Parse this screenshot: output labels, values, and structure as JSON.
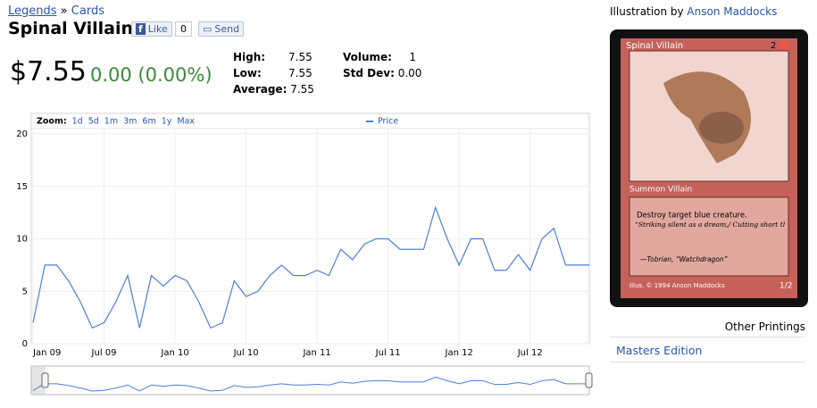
{
  "header": {
    "breadcrumb": [
      "Legends",
      "»",
      "Cards"
    ],
    "title": "Spinal Villain",
    "like": "Like",
    "like_count": "0",
    "send": "Send"
  },
  "price": {
    "value": "$7.55",
    "change": "0.00 (0.00%)"
  },
  "stats": [
    {
      "label": "High:",
      "value": "7.55"
    },
    {
      "label": "Low:",
      "value": "7.55"
    },
    {
      "label": "Average:",
      "value": "7.55"
    },
    {
      "label": "Volume:",
      "value": "1"
    },
    {
      "label": "Std Dev:",
      "value": "0.00"
    }
  ],
  "chart_data": {
    "type": "line",
    "zoom_label": "Zoom:",
    "zoom_options": [
      "1d",
      "5d",
      "1m",
      "3m",
      "6m",
      "1y",
      "Max"
    ],
    "x": [
      "2009-01",
      "2009-02",
      "2009-03",
      "2009-04",
      "2009-05",
      "2009-06",
      "2009-07",
      "2009-08",
      "2009-09",
      "2009-10",
      "2009-11",
      "2009-12",
      "2010-01",
      "2010-02",
      "2010-03",
      "2010-04",
      "2010-05",
      "2010-06",
      "2010-07",
      "2010-08",
      "2010-09",
      "2010-10",
      "2010-11",
      "2010-12",
      "2011-01",
      "2011-02",
      "2011-03",
      "2011-04",
      "2011-05",
      "2011-06",
      "2011-07",
      "2011-08",
      "2011-09",
      "2011-10",
      "2011-11",
      "2011-12",
      "2012-01",
      "2012-02",
      "2012-03",
      "2012-04",
      "2012-05",
      "2012-06",
      "2012-07",
      "2012-08",
      "2012-09",
      "2012-10",
      "2012-11",
      "2012-12"
    ],
    "series": [
      {
        "name": "Price",
        "color": "#4d7fd6",
        "values": [
          2,
          7.5,
          7.5,
          6,
          4,
          1.5,
          2,
          4,
          6.5,
          1.5,
          6.5,
          5.5,
          6.5,
          6,
          4,
          1.5,
          2,
          6,
          4.5,
          5,
          6.5,
          7.5,
          6.5,
          6.5,
          7,
          6.5,
          9,
          8,
          9.5,
          10,
          10,
          9,
          9,
          9,
          13,
          10,
          7.5,
          10,
          10,
          7,
          7,
          8.5,
          7,
          10,
          11,
          7.5,
          7.5,
          7.5
        ]
      }
    ],
    "xlim": [
      "2009-01",
      "2012-12"
    ],
    "xticks": [
      {
        "value": "2009-01",
        "label": "Jan 09"
      },
      {
        "value": "2009-07",
        "label": "Jul 09"
      },
      {
        "value": "2010-01",
        "label": "Jan 10"
      },
      {
        "value": "2010-07",
        "label": "Jul 10"
      },
      {
        "value": "2011-01",
        "label": "Jan 11"
      },
      {
        "value": "2011-07",
        "label": "Jul 11"
      },
      {
        "value": "2012-01",
        "label": "Jan 12"
      },
      {
        "value": "2012-07",
        "label": "Jul 12"
      }
    ],
    "ylim": [
      0,
      20
    ],
    "yticks": [
      0,
      5,
      10,
      15,
      20
    ],
    "grid": true
  },
  "artwork": {
    "credit_label": "Illustration by",
    "artist": "Anson Maddocks",
    "card": {
      "name": "Spinal Villain",
      "cost": "2",
      "type_line": "Summon Villain",
      "rules": "Destroy target blue creature.",
      "flavor": "“Striking silent as a dream,/ Cutting short the strangled scream . . .”",
      "flavor_source": "—Tobrian, “Watchdragon”",
      "illus": "Illus. © 1994 Anson Maddocks",
      "pt": "1/2"
    }
  },
  "printings": {
    "title": "Other Printings",
    "items": [
      "Masters Edition"
    ]
  }
}
